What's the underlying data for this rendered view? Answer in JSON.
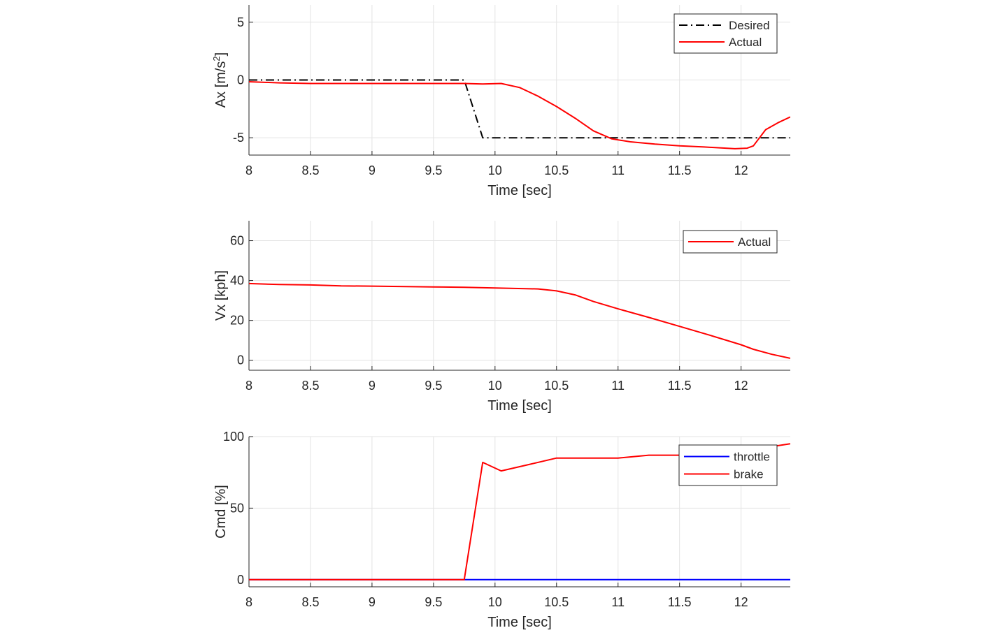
{
  "chart_data": [
    {
      "type": "line",
      "xlabel": "Time [sec]",
      "ylabel": "Ax [m/s",
      "ylabel_superscript": "2",
      "ylabel_suffix": "]",
      "xlim": [
        8,
        12.4
      ],
      "ylim": [
        -6.5,
        6.5
      ],
      "xticks": [
        8,
        8.5,
        9,
        9.5,
        10,
        10.5,
        11,
        11.5,
        12
      ],
      "xtick_labels": [
        "8",
        "8.5",
        "9",
        "9.5",
        "10",
        "10.5",
        "11",
        "11.5",
        "12"
      ],
      "yticks": [
        5,
        0,
        -5
      ],
      "ytick_labels": [
        "5",
        "0",
        "-5"
      ],
      "grid": true,
      "legend": "top-right",
      "series": [
        {
          "name": "Desired",
          "color": "#000000",
          "dash": "dashdot",
          "x": [
            8,
            9.75,
            9.9,
            12.4
          ],
          "y": [
            0,
            0,
            -5,
            -5
          ]
        },
        {
          "name": "Actual",
          "color": "#ff0000",
          "dash": "solid",
          "x": [
            8,
            8.25,
            8.5,
            9,
            9.5,
            9.75,
            9.9,
            10.05,
            10.2,
            10.35,
            10.5,
            10.65,
            10.8,
            10.95,
            11.1,
            11.3,
            11.5,
            11.7,
            11.95,
            12.05,
            12.1,
            12.2,
            12.3,
            12.4
          ],
          "y": [
            -0.15,
            -0.25,
            -0.3,
            -0.3,
            -0.3,
            -0.3,
            -0.35,
            -0.3,
            -0.65,
            -1.4,
            -2.3,
            -3.3,
            -4.4,
            -5.1,
            -5.35,
            -5.55,
            -5.7,
            -5.8,
            -5.95,
            -5.9,
            -5.7,
            -4.3,
            -3.7,
            -3.2
          ]
        }
      ]
    },
    {
      "type": "line",
      "xlabel": "Time [sec]",
      "ylabel": "Vx [kph]",
      "xlim": [
        8,
        12.4
      ],
      "ylim": [
        -5,
        70
      ],
      "xticks": [
        8,
        8.5,
        9,
        9.5,
        10,
        10.5,
        11,
        11.5,
        12
      ],
      "xtick_labels": [
        "8",
        "8.5",
        "9",
        "9.5",
        "10",
        "10.5",
        "11",
        "11.5",
        "12"
      ],
      "yticks": [
        60,
        40,
        20,
        0
      ],
      "ytick_labels": [
        "60",
        "40",
        "20",
        "0"
      ],
      "grid": true,
      "legend": "top-right",
      "series": [
        {
          "name": "Actual",
          "color": "#ff0000",
          "dash": "solid",
          "x": [
            8,
            8.25,
            8.5,
            8.75,
            9,
            9.5,
            9.75,
            10,
            10.35,
            10.5,
            10.65,
            10.8,
            11,
            11.25,
            11.5,
            11.75,
            12,
            12.1,
            12.25,
            12.4
          ],
          "y": [
            38.5,
            38,
            37.8,
            37.3,
            37.2,
            36.8,
            36.6,
            36.3,
            35.8,
            34.8,
            32.8,
            29.5,
            25.8,
            21.5,
            17,
            12.5,
            7.8,
            5.5,
            3,
            1
          ]
        }
      ]
    },
    {
      "type": "line",
      "xlabel": "Time [sec]",
      "ylabel": "Cmd [%]",
      "xlim": [
        8,
        12.4
      ],
      "ylim": [
        -5,
        100
      ],
      "xticks": [
        8,
        8.5,
        9,
        9.5,
        10,
        10.5,
        11,
        11.5,
        12
      ],
      "xtick_labels": [
        "8",
        "8.5",
        "9",
        "9.5",
        "10",
        "10.5",
        "11",
        "11.5",
        "12"
      ],
      "yticks": [
        100,
        50,
        0
      ],
      "ytick_labels": [
        "100",
        "50",
        "0"
      ],
      "grid": true,
      "legend": "top-right",
      "series": [
        {
          "name": "throttle",
          "color": "#0000ff",
          "dash": "solid",
          "x": [
            8,
            12.4
          ],
          "y": [
            0,
            0
          ]
        },
        {
          "name": "brake",
          "color": "#ff0000",
          "dash": "solid",
          "x": [
            8,
            9.75,
            9.9,
            10.05,
            10.25,
            10.5,
            11,
            11.25,
            11.5,
            11.85,
            12.1,
            12.4
          ],
          "y": [
            0,
            0,
            82,
            76,
            80,
            85,
            85,
            87,
            87,
            88,
            91,
            95
          ]
        }
      ]
    }
  ]
}
